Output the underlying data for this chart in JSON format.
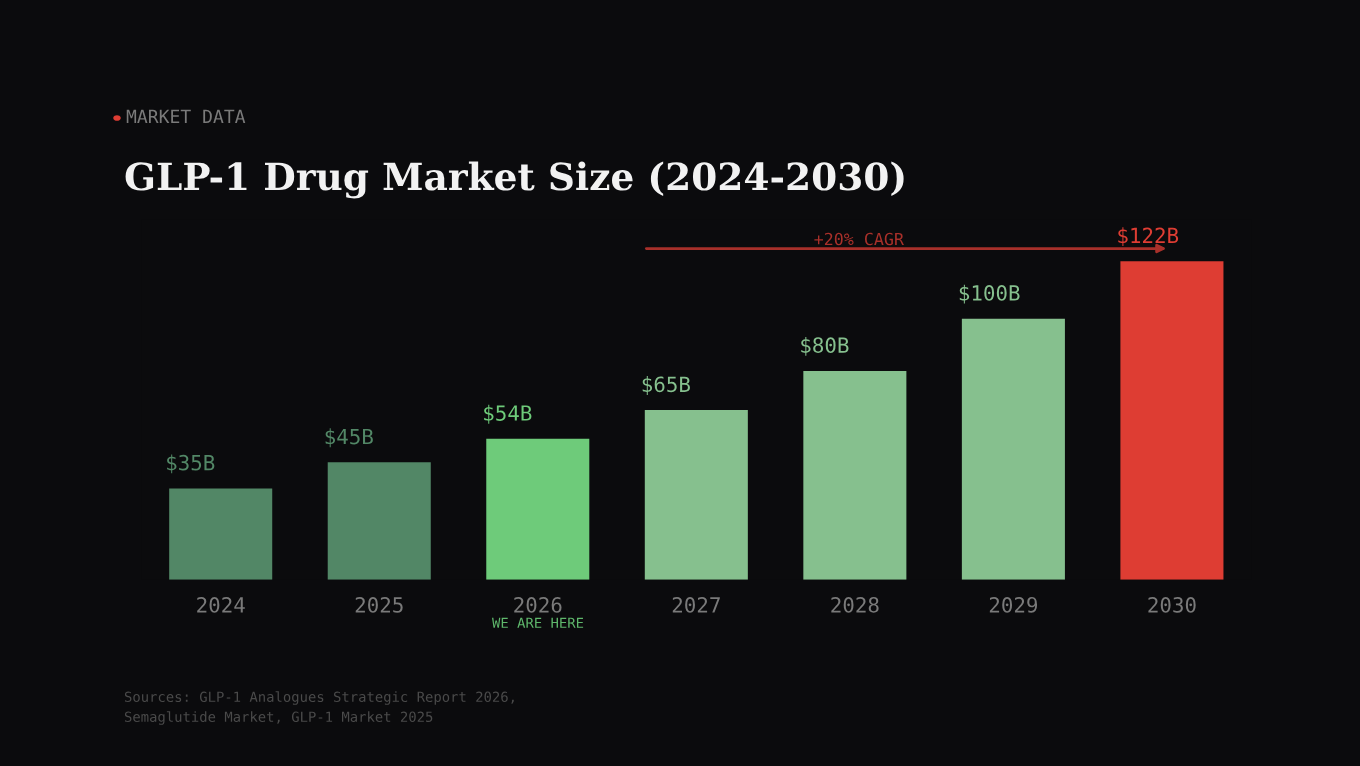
{
  "chart_data": {
    "type": "bar",
    "title": "GLP-1 Drug Market Size (2024-2030)",
    "categories": [
      "2024",
      "2025",
      "2026",
      "2027",
      "2028",
      "2029",
      "2030"
    ],
    "values": [
      35,
      45,
      54,
      65,
      80,
      100,
      122
    ],
    "value_labels": [
      "$35B",
      "$45B",
      "$54B",
      "$65B",
      "$80B",
      "$100B",
      "$122B"
    ],
    "colors": [
      "#528766",
      "#528766",
      "#6ecb7a",
      "#86c08e",
      "#86c08e",
      "#86c08e",
      "#de3d33"
    ],
    "annotations": [
      "MARKET DATA",
      "+20% CAGR",
      "WE ARE HERE",
      "Sources: GLP-1 Analogues Strategic Report 2026,\nSemaglutide Market, GLP-1 Market 2025"
    ],
    "grid": false,
    "legend": false
  }
}
